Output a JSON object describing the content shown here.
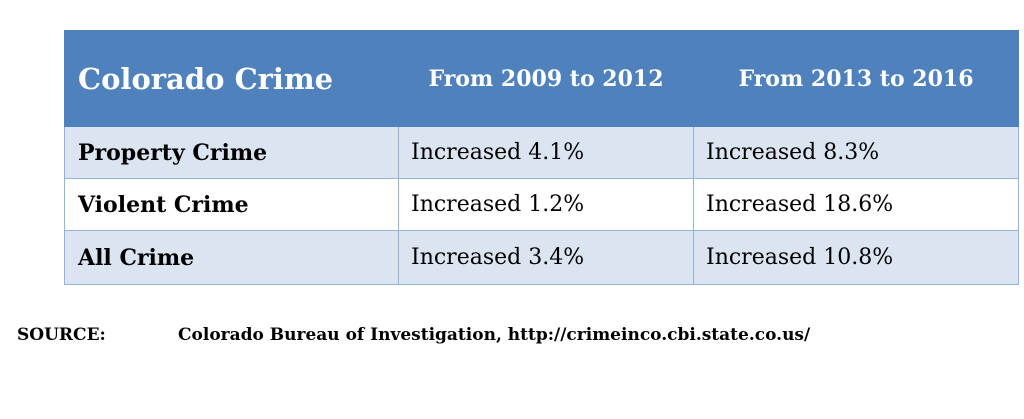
{
  "table": {
    "headers": [
      "Colorado Crime",
      "From 2009 to 2012",
      "From 2013 to 2016"
    ],
    "rows": [
      {
        "label": "Property Crime",
        "cells": [
          "Increased 4.1%",
          "Increased 8.3%"
        ]
      },
      {
        "label": "Violent Crime",
        "cells": [
          "Increased 1.2%",
          "Increased 18.6%"
        ]
      },
      {
        "label": "All Crime",
        "cells": [
          "Increased 3.4%",
          "Increased 10.8%"
        ]
      }
    ]
  },
  "source": {
    "label": "SOURCE:",
    "text": "Colorado Bureau of Investigation, http://crimeinco.cbi.state.co.us/"
  },
  "colors": {
    "header_bg": "#4f81bd",
    "band_bg": "#dbe5f1",
    "border": "#95b3d7"
  }
}
